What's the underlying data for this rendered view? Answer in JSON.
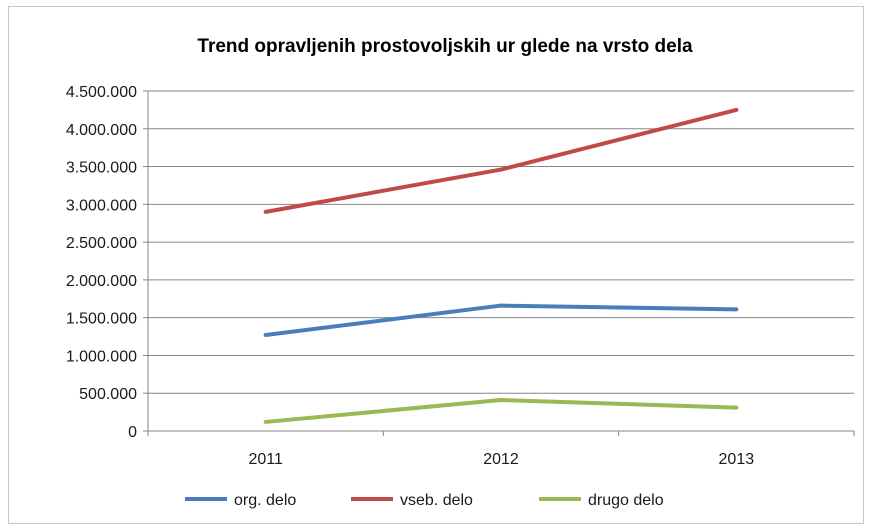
{
  "chart_data": {
    "type": "line",
    "title": "Trend opravljenih prostovoljskih ur glede na vrsto dela",
    "xlabel": "",
    "ylabel": "",
    "categories": [
      "2011",
      "2012",
      "2013"
    ],
    "ylim": [
      0,
      4500000
    ],
    "y_ticks": [
      0,
      500000,
      1000000,
      1500000,
      2000000,
      2500000,
      3000000,
      3500000,
      4000000,
      4500000
    ],
    "y_tick_labels": [
      "0",
      "500.000",
      "1.000.000",
      "1.500.000",
      "2.000.000",
      "2.500.000",
      "3.000.000",
      "3.500.000",
      "4.000.000",
      "4.500.000"
    ],
    "grid": "horizontal",
    "legend_position": "bottom",
    "series": [
      {
        "name": "org. delo",
        "color": "#4a7ebb",
        "values": [
          1270000,
          1660000,
          1610000
        ]
      },
      {
        "name": "vseb. delo",
        "color": "#be4b48",
        "values": [
          2900000,
          3460000,
          4250000
        ]
      },
      {
        "name": "drugo delo",
        "color": "#98b954",
        "values": [
          120000,
          410000,
          310000
        ]
      }
    ]
  }
}
